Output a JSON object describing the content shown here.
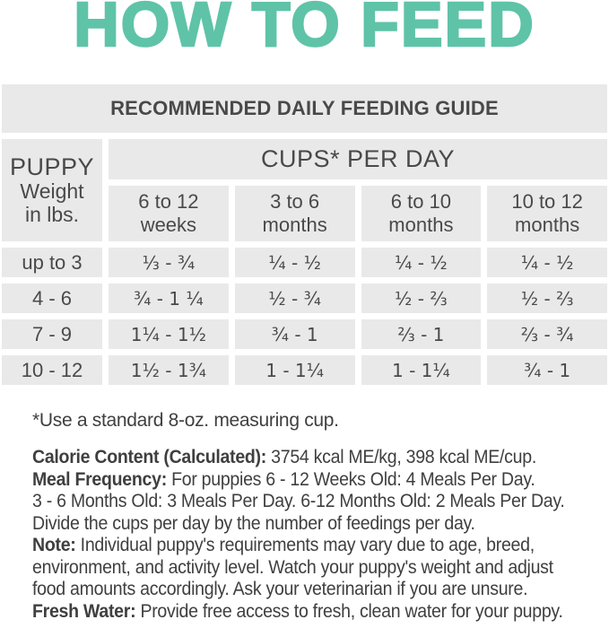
{
  "title": "HOW TO FEED",
  "table": {
    "banner": "RECOMMENDED DAILY FEEDING GUIDE",
    "weight_header": {
      "line1": "PUPPY",
      "line2": "Weight",
      "line3": "in lbs."
    },
    "cups_header": "CUPS* PER DAY",
    "age_columns": [
      {
        "line1": "6 to 12",
        "line2": "weeks"
      },
      {
        "line1": "3 to 6",
        "line2": "months"
      },
      {
        "line1": "6 to 10",
        "line2": "months"
      },
      {
        "line1": "10 to 12",
        "line2": "months"
      }
    ],
    "rows": [
      {
        "weight": "up to 3",
        "values": [
          "⅓ - ¾",
          "¼ - ½",
          "¼ - ½",
          "¼ - ½"
        ]
      },
      {
        "weight": "4 - 6",
        "values": [
          "¾ - 1 ¼",
          "½ - ¾",
          "½ - ⅔",
          "½ - ⅔"
        ]
      },
      {
        "weight": "7 - 9",
        "values": [
          "1¼ - 1½",
          "¾ - 1",
          "⅔ - 1",
          "⅔ - ¾"
        ]
      },
      {
        "weight": "10 - 12",
        "values": [
          "1½ - 1¾",
          "1 - 1¼",
          "1 - 1¼",
          "¾ - 1"
        ]
      }
    ]
  },
  "footnote": "*Use a standard 8-oz. measuring cup.",
  "notes": [
    {
      "label": "Calorie Content (Calculated):",
      "text": " 3754 kcal ME/kg, 398 kcal ME/cup."
    },
    {
      "label": "Meal Frequency:",
      "text": " For puppies 6 - 12 Weeks Old: 4 Meals Per Day.\n3 - 6 Months Old: 3 Meals Per Day. 6-12 Months Old: 2 Meals Per Day.\nDivide the cups per day by the number of feedings per day."
    },
    {
      "label": "Note:",
      "text": "  Individual puppy's requirements may vary due to age, breed,\nenvironment, and activity level. Watch your puppy's weight and adjust\nfood amounts accordingly. Ask your veterinarian if you are unsure."
    },
    {
      "label": "Fresh Water:",
      "text": " Provide free access to fresh, clean water for your puppy."
    }
  ],
  "colors": {
    "accent_teal": "#5fc3a8",
    "cell_gray": "#e9e9e9",
    "text_dark": "#414141"
  }
}
